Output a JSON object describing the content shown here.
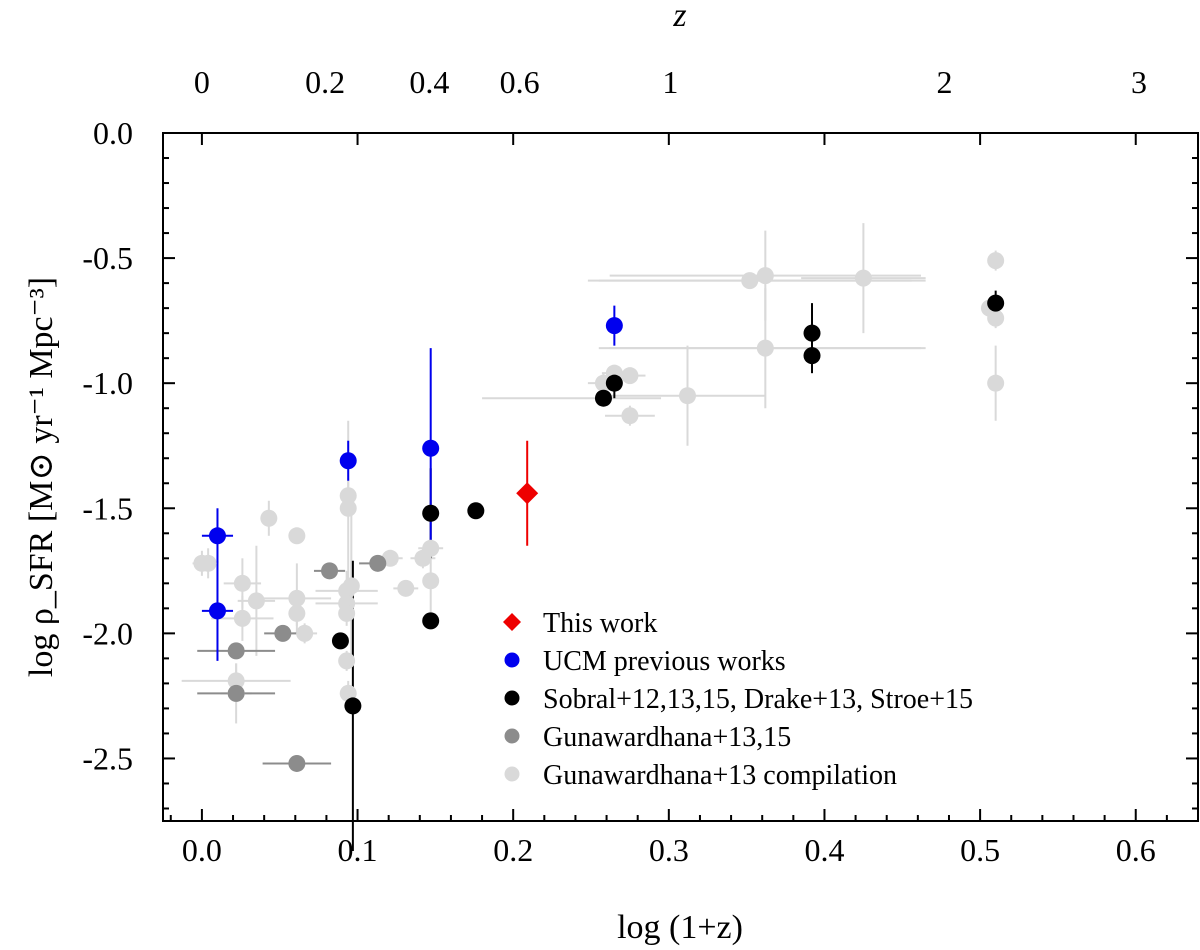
{
  "chart_data": {
    "type": "scatter",
    "title": "",
    "xlabel": "log (1+z)",
    "ylabel": "log ρ_SFR [M⊙ yr⁻¹ Mpc⁻³]",
    "xlim": [
      -0.025,
      0.64
    ],
    "ylim": [
      -2.75,
      0.0
    ],
    "x_ticks": [
      0.0,
      0.1,
      0.2,
      0.3,
      0.4,
      0.5,
      0.6
    ],
    "x_tick_labels": [
      "0.0",
      "0.1",
      "0.2",
      "0.3",
      "0.4",
      "0.5",
      "0.6"
    ],
    "y_ticks": [
      0.0,
      -0.5,
      -1.0,
      -1.5,
      -2.0,
      -2.5
    ],
    "y_tick_labels": [
      "0.0",
      "-0.5",
      "-1.0",
      "-1.5",
      "-2.0",
      "-2.5"
    ],
    "top_axis": {
      "label": "z",
      "ticks": [
        0,
        0.2,
        0.4,
        0.6,
        1,
        2,
        3
      ],
      "tick_labels": [
        "0",
        "0.2",
        "0.4",
        "0.6",
        "1",
        "2",
        "3"
      ]
    },
    "legend_position": "lower-right",
    "series": [
      {
        "name": "Gunawardhana+13 compilation",
        "color": "#d9d9d9",
        "marker": "circle",
        "points": [
          {
            "x": 0.0,
            "y": -1.72,
            "xerr": 0.006,
            "yerr": 0.05
          },
          {
            "x": 0.004,
            "y": -1.72,
            "xerr": 0.006,
            "yerr": 0.06
          },
          {
            "x": 0.026,
            "y": -1.8,
            "xerr": 0.012,
            "yerr": 0.1
          },
          {
            "x": 0.026,
            "y": -1.94,
            "xerr": 0.02,
            "yerr": 0.09
          },
          {
            "x": 0.022,
            "y": -2.19,
            "xerr": 0.035,
            "yerr": 0.07
          },
          {
            "x": 0.022,
            "y": -2.24,
            "xerr": 0.01,
            "yerr": 0.12
          },
          {
            "x": 0.035,
            "y": -1.87,
            "xerr": 0.012,
            "yerr": 0.22
          },
          {
            "x": 0.043,
            "y": -1.54,
            "xerr": 0.005,
            "yerr": 0.07
          },
          {
            "x": 0.061,
            "y": -1.61,
            "xerr": 0.005,
            "yerr": 0.03
          },
          {
            "x": 0.061,
            "y": -1.86,
            "xerr": 0.022,
            "yerr": 0.14
          },
          {
            "x": 0.061,
            "y": -1.92,
            "xerr": 0.004,
            "yerr": 0.05
          },
          {
            "x": 0.066,
            "y": -2.0,
            "xerr": 0.008,
            "yerr": 0.04
          },
          {
            "x": 0.094,
            "y": -1.45,
            "xerr": 0.003,
            "yerr": 0.07
          },
          {
            "x": 0.094,
            "y": -1.5,
            "xerr": 0.003,
            "yerr": 0.35
          },
          {
            "x": 0.093,
            "y": -1.83,
            "xerr": 0.02,
            "yerr": 0.08
          },
          {
            "x": 0.093,
            "y": -1.88,
            "xerr": 0.02,
            "yerr": 0.06
          },
          {
            "x": 0.093,
            "y": -1.92,
            "xerr": 0.004,
            "yerr": 0.05
          },
          {
            "x": 0.096,
            "y": -1.81,
            "xerr": 0.003,
            "yerr": 0.3
          },
          {
            "x": 0.093,
            "y": -2.11,
            "xerr": 0.003,
            "yerr": 0.04
          },
          {
            "x": 0.094,
            "y": -2.24,
            "xerr": 0.003,
            "yerr": 0.05
          },
          {
            "x": 0.121,
            "y": -1.7,
            "xerr": 0.008,
            "yerr": 0.03
          },
          {
            "x": 0.131,
            "y": -1.82,
            "xerr": 0.008,
            "yerr": 0.03
          },
          {
            "x": 0.142,
            "y": -1.7,
            "xerr": 0.008,
            "yerr": 0.04
          },
          {
            "x": 0.147,
            "y": -1.66,
            "xerr": 0.008,
            "yerr": 0.04
          },
          {
            "x": 0.147,
            "y": -1.79,
            "xerr": 0.004,
            "yerr": 0.14
          },
          {
            "x": 0.258,
            "y": -1.0,
            "xerr": 0.01,
            "yerr": 0.04
          },
          {
            "x": 0.265,
            "y": -0.96,
            "xerr": 0.008,
            "yerr": 0.03
          },
          {
            "x": 0.275,
            "y": -0.97,
            "xerr": 0.01,
            "yerr": 0.03
          },
          {
            "x": 0.275,
            "y": -1.13,
            "xerr": 0.016,
            "yerr": 0.04
          },
          {
            "x": 0.312,
            "y": -1.05,
            "xerr": 0.05,
            "yerr": 0.2
          },
          {
            "x": 0.352,
            "y": -0.59,
            "xerr": 0.104,
            "yerr": 0.03
          },
          {
            "x": 0.362,
            "y": -0.57,
            "xerr": 0.1,
            "yerr": 0.18
          },
          {
            "x": 0.362,
            "y": -0.86,
            "xerr": 0.1,
            "yerr": 0.24
          },
          {
            "x": 0.425,
            "y": -0.58,
            "xerr": 0.04,
            "yerr": 0.22
          },
          {
            "x": 0.506,
            "y": -0.7,
            "xerr": 0.005,
            "yerr": 0.03
          },
          {
            "x": 0.51,
            "y": -0.51,
            "xerr": 0.003,
            "yerr": 0.04
          },
          {
            "x": 0.51,
            "y": -0.74,
            "xerr": 0.003,
            "yerr": 0.04
          },
          {
            "x": 0.51,
            "y": -1.0,
            "xerr": 0.003,
            "yerr": 0.15
          }
        ],
        "wide_xerr": [
          {
            "x": 0.265,
            "y": -0.59,
            "xerr_lo": 0.01,
            "xerr_hi": 0.2
          },
          {
            "x": 0.265,
            "y": -0.86,
            "xerr_lo": 0.01,
            "xerr_hi": 0.2
          },
          {
            "x": 0.265,
            "y": -1.06,
            "xerr_lo": 0.085,
            "xerr_hi": 0.03
          }
        ]
      },
      {
        "name": "Gunawardhana+13,15",
        "color": "#8c8c8c",
        "marker": "circle",
        "points": [
          {
            "x": 0.022,
            "y": -2.07,
            "xerr": 0.025,
            "yerr": 0.0
          },
          {
            "x": 0.022,
            "y": -2.24,
            "xerr": 0.025,
            "yerr": 0.0
          },
          {
            "x": 0.052,
            "y": -2.0,
            "xerr": 0.012,
            "yerr": 0.0
          },
          {
            "x": 0.061,
            "y": -2.52,
            "xerr": 0.022,
            "yerr": 0.0
          },
          {
            "x": 0.082,
            "y": -1.75,
            "xerr": 0.01,
            "yerr": 0.0
          },
          {
            "x": 0.113,
            "y": -1.72,
            "xerr": 0.012,
            "yerr": 0.0
          }
        ]
      },
      {
        "name": "Sobral+12,13,15, Drake+13, Stroe+15",
        "color": "#000000",
        "marker": "circle",
        "points": [
          {
            "x": 0.089,
            "y": -2.03,
            "xerr": 0.0,
            "yerr": 0.03
          },
          {
            "x": 0.097,
            "y": -2.29,
            "xerr": 0.0,
            "yerr": 0.58
          },
          {
            "x": 0.147,
            "y": -1.52,
            "xerr": 0.0,
            "yerr": 0.18
          },
          {
            "x": 0.147,
            "y": -1.95,
            "xerr": 0.0,
            "yerr": 0.03
          },
          {
            "x": 0.176,
            "y": -1.51,
            "xerr": 0.0,
            "yerr": 0.03
          },
          {
            "x": 0.258,
            "y": -1.06,
            "xerr": 0.0,
            "yerr": 0.03
          },
          {
            "x": 0.265,
            "y": -1.0,
            "xerr": 0.0,
            "yerr": 0.06
          },
          {
            "x": 0.392,
            "y": -0.8,
            "xerr": 0.0,
            "yerr": 0.12
          },
          {
            "x": 0.392,
            "y": -0.89,
            "xerr": 0.0,
            "yerr": 0.07
          },
          {
            "x": 0.51,
            "y": -0.68,
            "xerr": 0.0,
            "yerr": 0.05
          }
        ]
      },
      {
        "name": "UCM previous works",
        "color": "#0000ee",
        "marker": "circle",
        "points": [
          {
            "x": 0.01,
            "y": -1.61,
            "xerr": 0.01,
            "yerr": 0.11
          },
          {
            "x": 0.01,
            "y": -1.91,
            "xerr": 0.01,
            "yerr": 0.2
          },
          {
            "x": 0.094,
            "y": -1.31,
            "xerr": 0.0,
            "yerr": 0.08
          },
          {
            "x": 0.147,
            "y": -1.26,
            "xerr": 0.0,
            "yerr": 0.4
          },
          {
            "x": 0.265,
            "y": -0.77,
            "xerr": 0.0,
            "yerr": 0.08
          }
        ]
      },
      {
        "name": "This work",
        "color": "#ee0000",
        "marker": "diamond",
        "points": [
          {
            "x": 0.209,
            "y": -1.44,
            "xerr": 0.0,
            "yerr": 0.21
          }
        ]
      }
    ]
  }
}
